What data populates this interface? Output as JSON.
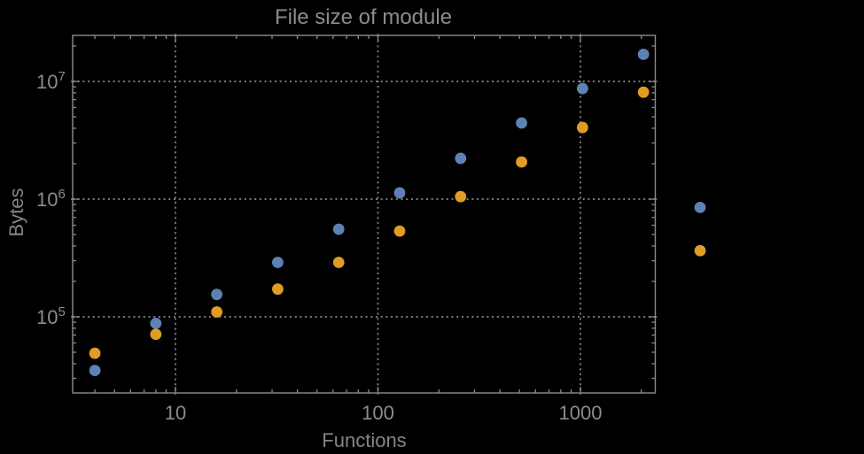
{
  "page": {
    "background_color": "#000000"
  },
  "chart_data": {
    "type": "scatter",
    "title": "File size of module",
    "xlabel": "Functions",
    "ylabel": "Bytes",
    "x_scale": "log10",
    "y_scale": "log10",
    "legend": "none",
    "grid": {
      "style": "dotted",
      "lines_x": [
        10,
        100,
        1000
      ],
      "lines_y": [
        100000,
        1000000,
        10000000
      ]
    },
    "x_ticks": [
      {
        "value": 10,
        "label": "10"
      },
      {
        "value": 100,
        "label": "100"
      },
      {
        "value": 1000,
        "label": "1000"
      }
    ],
    "y_ticks": [
      {
        "value": 100000,
        "base": "10",
        "exponent": "5"
      },
      {
        "value": 1000000,
        "base": "10",
        "exponent": "6"
      },
      {
        "value": 10000000,
        "base": "10",
        "exponent": "7"
      }
    ],
    "x_range_shown": [
      3.1,
      2350
    ],
    "y_range_shown": [
      23000,
      24500000
    ],
    "series": [
      {
        "name": "blue",
        "color": "#5E81B5",
        "points": [
          [
            4,
            35000
          ],
          [
            8,
            88000
          ],
          [
            16,
            155000
          ],
          [
            32,
            290000
          ],
          [
            64,
            555000
          ],
          [
            128,
            1130000
          ],
          [
            256,
            2220000
          ],
          [
            512,
            4430000
          ],
          [
            1024,
            8700000
          ],
          [
            2048,
            17000000
          ],
          [
            3900,
            850000
          ]
        ]
      },
      {
        "name": "orange",
        "color": "#E19C24",
        "points": [
          [
            4,
            49000
          ],
          [
            8,
            71000
          ],
          [
            16,
            110000
          ],
          [
            32,
            172000
          ],
          [
            64,
            290000
          ],
          [
            128,
            535000
          ],
          [
            256,
            1050000
          ],
          [
            512,
            2070000
          ],
          [
            1024,
            4060000
          ],
          [
            2048,
            8100000
          ],
          [
            3900,
            365000
          ]
        ]
      }
    ],
    "colors": {
      "frame": "#8c8c8c",
      "grid": "#7a7a7a",
      "tick_labels": "#8c8c8c",
      "axis_labels": "#858585",
      "title": "#8c8c8c"
    }
  }
}
